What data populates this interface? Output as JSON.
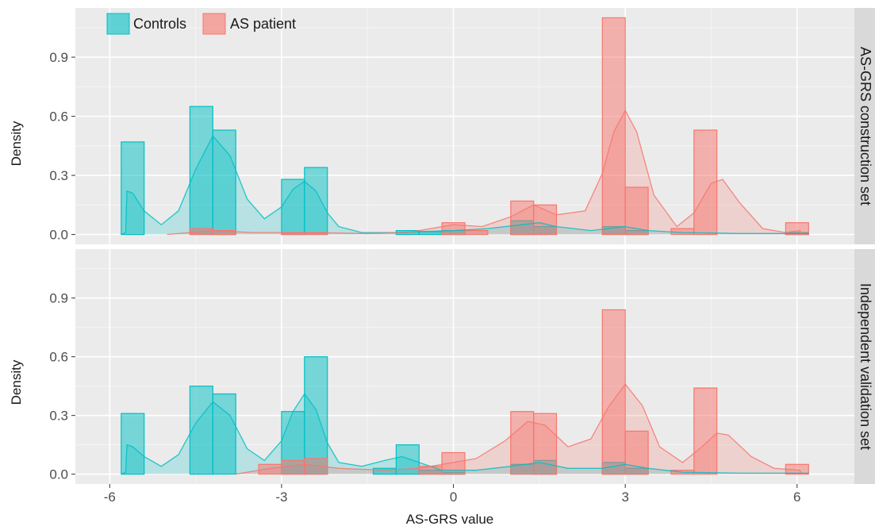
{
  "chart_data": {
    "type": "histogram",
    "xlabel": "AS-GRS value",
    "ylabel": "Density",
    "xlim": [
      -6.6,
      7.0
    ],
    "ylim": [
      -0.05,
      1.15
    ],
    "x_ticks": [
      -6,
      -3,
      0,
      3,
      6
    ],
    "y_ticks": [
      0.0,
      0.3,
      0.6,
      0.9
    ],
    "x_tick_labels": [
      "-6",
      "-3",
      "0",
      "3",
      "6"
    ],
    "y_tick_labels": [
      "0.0",
      "0.3",
      "0.6",
      "0.9"
    ],
    "bin_width": 0.4,
    "grid": true,
    "legend": {
      "position": "top-left",
      "entries": [
        {
          "label": "Controls",
          "color": "#00bfc4"
        },
        {
          "label": "AS patient",
          "color": "#f8766d"
        }
      ]
    },
    "panels": [
      {
        "strip": "AS-GRS construction set",
        "series": [
          {
            "name": "Controls",
            "color": "#00bfc4",
            "bars": [
              [
                -5.6,
                0.47
              ],
              [
                -4.4,
                0.65
              ],
              [
                -4.0,
                0.53
              ],
              [
                -2.8,
                0.28
              ],
              [
                -2.4,
                0.34
              ],
              [
                -0.8,
                0.02
              ],
              [
                -0.4,
                0.015
              ],
              [
                0.0,
                0.02
              ],
              [
                1.2,
                0.07
              ],
              [
                1.6,
                0.04
              ],
              [
                2.8,
                0.04
              ],
              [
                3.2,
                0.02
              ],
              [
                6.0,
                0.01
              ]
            ],
            "density": [
              [
                -5.8,
                0.0
              ],
              [
                -5.72,
                0.01
              ],
              [
                -5.7,
                0.22
              ],
              [
                -5.6,
                0.21
              ],
              [
                -5.4,
                0.12
              ],
              [
                -5.1,
                0.05
              ],
              [
                -4.8,
                0.12
              ],
              [
                -4.5,
                0.33
              ],
              [
                -4.2,
                0.5
              ],
              [
                -3.9,
                0.4
              ],
              [
                -3.6,
                0.18
              ],
              [
                -3.3,
                0.08
              ],
              [
                -3.0,
                0.14
              ],
              [
                -2.8,
                0.23
              ],
              [
                -2.6,
                0.27
              ],
              [
                -2.4,
                0.22
              ],
              [
                -2.2,
                0.11
              ],
              [
                -2.0,
                0.04
              ],
              [
                -1.6,
                0.01
              ],
              [
                -1.0,
                0.01
              ],
              [
                -0.6,
                0.015
              ],
              [
                0.0,
                0.02
              ],
              [
                0.6,
                0.03
              ],
              [
                1.2,
                0.05
              ],
              [
                1.5,
                0.06
              ],
              [
                1.8,
                0.04
              ],
              [
                2.4,
                0.02
              ],
              [
                3.0,
                0.04
              ],
              [
                3.4,
                0.02
              ],
              [
                4.0,
                0.01
              ],
              [
                5.0,
                0.005
              ],
              [
                6.2,
                0.005
              ]
            ]
          },
          {
            "name": "AS patient",
            "color": "#f8766d",
            "bars": [
              [
                -4.4,
                0.03
              ],
              [
                -4.0,
                0.02
              ],
              [
                -2.8,
                0.01
              ],
              [
                -2.4,
                0.01
              ],
              [
                0.0,
                0.06
              ],
              [
                0.4,
                0.02
              ],
              [
                1.2,
                0.17
              ],
              [
                1.6,
                0.15
              ],
              [
                2.8,
                1.1
              ],
              [
                3.2,
                0.24
              ],
              [
                4.0,
                0.03
              ],
              [
                4.4,
                0.53
              ],
              [
                6.0,
                0.06
              ]
            ],
            "density": [
              [
                -5.0,
                0.0
              ],
              [
                -4.2,
                0.02
              ],
              [
                -3.5,
                0.01
              ],
              [
                -2.6,
                0.01
              ],
              [
                -1.5,
                0.005
              ],
              [
                -0.8,
                0.01
              ],
              [
                0.0,
                0.05
              ],
              [
                0.5,
                0.04
              ],
              [
                1.0,
                0.09
              ],
              [
                1.4,
                0.15
              ],
              [
                1.8,
                0.1
              ],
              [
                2.3,
                0.12
              ],
              [
                2.6,
                0.31
              ],
              [
                2.8,
                0.52
              ],
              [
                3.0,
                0.63
              ],
              [
                3.2,
                0.52
              ],
              [
                3.5,
                0.2
              ],
              [
                3.9,
                0.04
              ],
              [
                4.2,
                0.11
              ],
              [
                4.5,
                0.26
              ],
              [
                4.7,
                0.28
              ],
              [
                5.0,
                0.16
              ],
              [
                5.4,
                0.03
              ],
              [
                5.8,
                0.01
              ],
              [
                6.05,
                0.02
              ],
              [
                6.08,
                0.0
              ]
            ]
          }
        ]
      },
      {
        "strip": "Independent validation set",
        "series": [
          {
            "name": "Controls",
            "color": "#00bfc4",
            "bars": [
              [
                -5.6,
                0.31
              ],
              [
                -4.4,
                0.45
              ],
              [
                -4.0,
                0.41
              ],
              [
                -2.8,
                0.32
              ],
              [
                -2.4,
                0.6
              ],
              [
                -1.2,
                0.03
              ],
              [
                -0.8,
                0.15
              ],
              [
                -0.4,
                0.02
              ],
              [
                0.0,
                0.01
              ],
              [
                1.2,
                0.05
              ],
              [
                1.6,
                0.07
              ],
              [
                2.8,
                0.06
              ],
              [
                3.2,
                0.03
              ]
            ],
            "density": [
              [
                -5.8,
                0.0
              ],
              [
                -5.72,
                0.01
              ],
              [
                -5.7,
                0.15
              ],
              [
                -5.6,
                0.14
              ],
              [
                -5.4,
                0.09
              ],
              [
                -5.1,
                0.04
              ],
              [
                -4.8,
                0.1
              ],
              [
                -4.5,
                0.26
              ],
              [
                -4.2,
                0.37
              ],
              [
                -3.9,
                0.3
              ],
              [
                -3.6,
                0.13
              ],
              [
                -3.3,
                0.07
              ],
              [
                -3.0,
                0.17
              ],
              [
                -2.8,
                0.32
              ],
              [
                -2.6,
                0.41
              ],
              [
                -2.4,
                0.33
              ],
              [
                -2.2,
                0.16
              ],
              [
                -2.0,
                0.06
              ],
              [
                -1.6,
                0.04
              ],
              [
                -1.2,
                0.07
              ],
              [
                -0.9,
                0.09
              ],
              [
                -0.6,
                0.06
              ],
              [
                -0.2,
                0.02
              ],
              [
                0.4,
                0.02
              ],
              [
                1.0,
                0.04
              ],
              [
                1.5,
                0.06
              ],
              [
                2.0,
                0.03
              ],
              [
                2.6,
                0.03
              ],
              [
                3.0,
                0.05
              ],
              [
                3.4,
                0.03
              ],
              [
                4.0,
                0.01
              ],
              [
                5.0,
                0.005
              ],
              [
                6.2,
                0.005
              ]
            ]
          },
          {
            "name": "AS patient",
            "color": "#f8766d",
            "bars": [
              [
                -3.2,
                0.05
              ],
              [
                -2.8,
                0.07
              ],
              [
                -2.4,
                0.08
              ],
              [
                -0.4,
                0.04
              ],
              [
                0.0,
                0.11
              ],
              [
                1.2,
                0.32
              ],
              [
                1.6,
                0.31
              ],
              [
                2.8,
                0.84
              ],
              [
                3.2,
                0.22
              ],
              [
                4.0,
                0.02
              ],
              [
                4.4,
                0.44
              ],
              [
                6.0,
                0.05
              ]
            ],
            "density": [
              [
                -3.8,
                0.0
              ],
              [
                -3.2,
                0.03
              ],
              [
                -2.6,
                0.05
              ],
              [
                -2.0,
                0.03
              ],
              [
                -1.2,
                0.02
              ],
              [
                -0.6,
                0.03
              ],
              [
                0.0,
                0.06
              ],
              [
                0.4,
                0.08
              ],
              [
                0.9,
                0.17
              ],
              [
                1.3,
                0.27
              ],
              [
                1.6,
                0.25
              ],
              [
                2.0,
                0.14
              ],
              [
                2.4,
                0.18
              ],
              [
                2.7,
                0.34
              ],
              [
                3.0,
                0.46
              ],
              [
                3.3,
                0.35
              ],
              [
                3.6,
                0.14
              ],
              [
                4.0,
                0.06
              ],
              [
                4.3,
                0.13
              ],
              [
                4.6,
                0.21
              ],
              [
                4.8,
                0.2
              ],
              [
                5.2,
                0.09
              ],
              [
                5.6,
                0.03
              ],
              [
                6.05,
                0.02
              ],
              [
                6.08,
                0.0
              ]
            ]
          }
        ]
      }
    ]
  }
}
